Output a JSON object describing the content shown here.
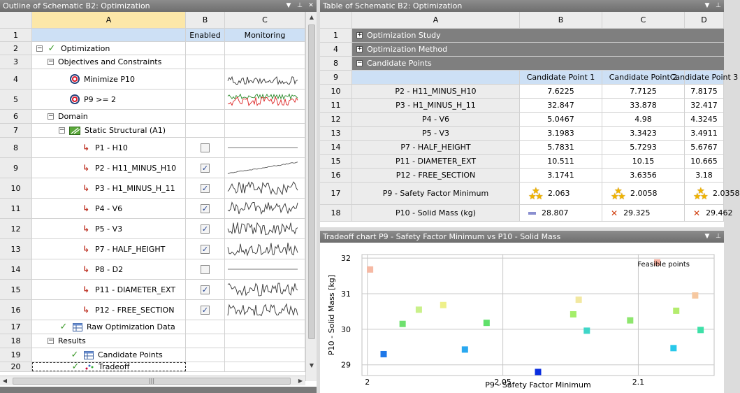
{
  "outline": {
    "title": "Outline of Schematic B2: Optimization",
    "columns": [
      "A",
      "B",
      "C"
    ],
    "col_b_label": "Enabled",
    "col_c_label": "Monitoring",
    "rows": [
      {
        "num": "2",
        "label": "Optimization",
        "indent": 0,
        "toggle": "−",
        "icon": "tick"
      },
      {
        "num": "3",
        "label": "Objectives and Constraints",
        "indent": 1,
        "toggle": "−",
        "icon": ""
      },
      {
        "num": "4",
        "label": "Minimize P10",
        "indent": 3,
        "toggle": "",
        "icon": "target",
        "monitor": "objective"
      },
      {
        "num": "5",
        "label": "P9 >= 2",
        "indent": 3,
        "toggle": "",
        "icon": "target",
        "monitor": "constraint"
      },
      {
        "num": "6",
        "label": "Domain",
        "indent": 1,
        "toggle": "−",
        "icon": ""
      },
      {
        "num": "7",
        "label": "Static Structural (A1)",
        "indent": 2,
        "toggle": "−",
        "icon": "system"
      },
      {
        "num": "8",
        "label": "P1 - H10",
        "indent": 4,
        "toggle": "",
        "icon": "param",
        "enabled": false,
        "monitor": "flat"
      },
      {
        "num": "9",
        "label": "P2 - H11_MINUS_H10",
        "indent": 4,
        "toggle": "",
        "icon": "param",
        "enabled": true,
        "monitor": "rising"
      },
      {
        "num": "10",
        "label": "P3 - H1_MINUS_H_11",
        "indent": 4,
        "toggle": "",
        "icon": "param",
        "enabled": true,
        "monitor": "noise"
      },
      {
        "num": "11",
        "label": "P4 - V6",
        "indent": 4,
        "toggle": "",
        "icon": "param",
        "enabled": true,
        "monitor": "noise"
      },
      {
        "num": "12",
        "label": "P5 - V3",
        "indent": 4,
        "toggle": "",
        "icon": "param",
        "enabled": true,
        "monitor": "noise"
      },
      {
        "num": "13",
        "label": "P7 - HALF_HEIGHT",
        "indent": 4,
        "toggle": "",
        "icon": "param",
        "enabled": true,
        "monitor": "noise"
      },
      {
        "num": "14",
        "label": "P8 - D2",
        "indent": 4,
        "toggle": "",
        "icon": "param",
        "enabled": false,
        "monitor": "flat"
      },
      {
        "num": "15",
        "label": "P11 - DIAMETER_EXT",
        "indent": 4,
        "toggle": "",
        "icon": "param",
        "enabled": true,
        "monitor": "noise"
      },
      {
        "num": "16",
        "label": "P12 - FREE_SECTION",
        "indent": 4,
        "toggle": "",
        "icon": "param",
        "enabled": true,
        "monitor": "noise"
      },
      {
        "num": "17",
        "label": "Raw Optimization Data",
        "indent": 2,
        "toggle": "",
        "icon": "tick-table"
      },
      {
        "num": "18",
        "label": "Results",
        "indent": 1,
        "toggle": "−",
        "icon": ""
      },
      {
        "num": "19",
        "label": "Candidate Points",
        "indent": 3,
        "toggle": "",
        "icon": "tick-table"
      },
      {
        "num": "20",
        "label": "Tradeoff",
        "indent": 3,
        "toggle": "",
        "icon": "tick-chart"
      }
    ]
  },
  "table": {
    "title": "Table of Schematic B2: Optimization",
    "columns": [
      "A",
      "B",
      "C",
      "D"
    ],
    "groups": [
      {
        "num": "1",
        "label": "Optimization Study",
        "toggle": "+"
      },
      {
        "num": "4",
        "label": "Optimization Method",
        "toggle": "+"
      },
      {
        "num": "8",
        "label": "Candidate Points",
        "toggle": "−"
      }
    ],
    "header_row": {
      "num": "9",
      "cols": [
        "Candidate Point 1",
        "Candidate Point 2",
        "Candidate Point 3"
      ]
    },
    "rows": [
      {
        "num": "10",
        "label": "P2 - H11_MINUS_H10",
        "values": [
          "7.6225",
          "7.7125",
          "7.8175"
        ]
      },
      {
        "num": "11",
        "label": "P3 - H1_MINUS_H_11",
        "values": [
          "32.847",
          "33.878",
          "32.417"
        ]
      },
      {
        "num": "12",
        "label": "P4 - V6",
        "values": [
          "5.0467",
          "4.98",
          "4.3245"
        ]
      },
      {
        "num": "13",
        "label": "P5 - V3",
        "values": [
          "3.1983",
          "3.3423",
          "3.4911"
        ]
      },
      {
        "num": "14",
        "label": "P7 - HALF_HEIGHT",
        "values": [
          "5.7831",
          "5.7293",
          "5.6767"
        ]
      },
      {
        "num": "15",
        "label": "P11 - DIAMETER_EXT",
        "values": [
          "10.511",
          "10.15",
          "10.665"
        ]
      },
      {
        "num": "16",
        "label": "P12 - FREE_SECTION",
        "values": [
          "3.1741",
          "3.6356",
          "3.18"
        ]
      }
    ],
    "rating_rows": [
      {
        "num": "17",
        "label": "P9 - Safety Factor Minimum",
        "values": [
          "2.063",
          "2.0058",
          "2.0358"
        ],
        "marks": [
          "stars",
          "stars",
          "stars"
        ]
      },
      {
        "num": "18",
        "label": "P10 - Solid Mass (kg)",
        "values": [
          "28.807",
          "29.325",
          "29.462"
        ],
        "marks": [
          "dash",
          "cross",
          "cross"
        ]
      }
    ]
  },
  "chart": {
    "title": "Tradeoff chart P9 - Safety Factor Minimum vs P10 - Solid Mass"
  },
  "chart_data": {
    "type": "scatter",
    "title": "",
    "xlabel": "P9 - Safety Factor Minimum",
    "ylabel": "P10 - Solid Mass  [kg]",
    "xlim": [
      1.998,
      2.128
    ],
    "ylim": [
      28.7,
      32.1
    ],
    "xticks": [
      "2",
      "2.05",
      "2.1"
    ],
    "yticks": [
      "29",
      "30",
      "31",
      "32"
    ],
    "grid": true,
    "legend": "Feasible points",
    "legend_position": "top-right",
    "points": [
      {
        "x": 2.001,
        "y": 31.68,
        "color": "#f6b9a4"
      },
      {
        "x": 2.006,
        "y": 29.3,
        "color": "#1e78e8"
      },
      {
        "x": 2.013,
        "y": 30.15,
        "color": "#6ee06e"
      },
      {
        "x": 2.019,
        "y": 30.55,
        "color": "#c9f08a"
      },
      {
        "x": 2.028,
        "y": 30.68,
        "color": "#eef08a"
      },
      {
        "x": 2.036,
        "y": 29.43,
        "color": "#2aa8f0"
      },
      {
        "x": 2.044,
        "y": 30.18,
        "color": "#5fe06a"
      },
      {
        "x": 2.063,
        "y": 28.8,
        "color": "#0a2ee0"
      },
      {
        "x": 2.076,
        "y": 30.42,
        "color": "#a4ee6a"
      },
      {
        "x": 2.078,
        "y": 30.83,
        "color": "#f2e8a0"
      },
      {
        "x": 2.081,
        "y": 29.96,
        "color": "#3fd6c8"
      },
      {
        "x": 2.097,
        "y": 30.25,
        "color": "#8ee66e"
      },
      {
        "x": 2.107,
        "y": 31.88,
        "color": "#f6b0a0"
      },
      {
        "x": 2.113,
        "y": 29.47,
        "color": "#28c8ea"
      },
      {
        "x": 2.114,
        "y": 30.52,
        "color": "#b4ec6e"
      },
      {
        "x": 2.121,
        "y": 30.95,
        "color": "#f6c8a0"
      },
      {
        "x": 2.123,
        "y": 29.98,
        "color": "#3ee0a8"
      }
    ]
  }
}
